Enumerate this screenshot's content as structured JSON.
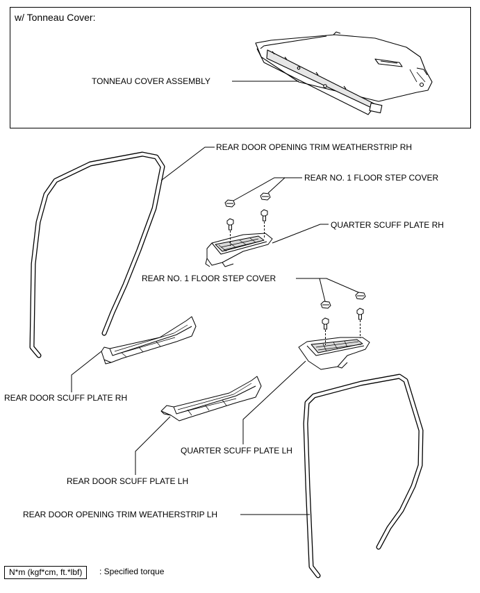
{
  "inset": {
    "title": "w/ Tonneau Cover:",
    "tonneau_label": "TONNEAU COVER ASSEMBLY"
  },
  "labels": {
    "weatherstrip_rh": "REAR DOOR OPENING TRIM WEATHERSTRIP RH",
    "floor_step_cover_upper": "REAR NO. 1 FLOOR STEP COVER",
    "quarter_scuff_rh": "QUARTER SCUFF PLATE RH",
    "floor_step_cover_lower": "REAR NO. 1 FLOOR STEP COVER",
    "rear_door_scuff_rh": "REAR DOOR SCUFF PLATE RH",
    "quarter_scuff_lh": "QUARTER SCUFF PLATE LH",
    "rear_door_scuff_lh": "REAR DOOR SCUFF PLATE LH",
    "weatherstrip_lh": "REAR DOOR OPENING TRIM WEATHERSTRIP LH"
  },
  "legend": {
    "unit": "N*m (kgf*cm, ft.*lbf)",
    "description": ": Specified torque"
  },
  "colors": {
    "line": "#000000",
    "part_fill": "#ffffff",
    "part_shade": "#d9d9d9"
  }
}
